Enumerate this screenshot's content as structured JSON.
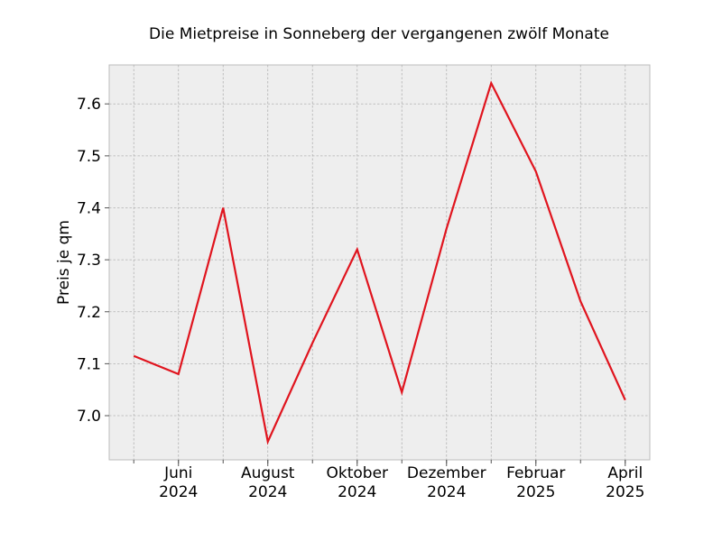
{
  "chart_data": {
    "type": "line",
    "title": "Die Mietpreise in Sonneberg der vergangenen zwölf Monate",
    "xlabel": "",
    "ylabel": "Preis je qm",
    "x": [
      "2024-05",
      "2024-06",
      "2024-07",
      "2024-08",
      "2024-09",
      "2024-10",
      "2024-11",
      "2024-12",
      "2025-01",
      "2025-02",
      "2025-03",
      "2025-04"
    ],
    "series": [
      {
        "values": [
          7.115,
          7.08,
          7.4,
          6.95,
          7.14,
          7.32,
          7.045,
          7.36,
          7.64,
          7.47,
          7.22,
          7.03
        ]
      }
    ],
    "ylim": [
      6.915,
      7.675
    ],
    "yticks": [
      7.0,
      7.1,
      7.2,
      7.3,
      7.4,
      7.5,
      7.6
    ],
    "xticks": [
      {
        "month": "Juni",
        "year": "2024",
        "index": 1
      },
      {
        "month": "August",
        "year": "2024",
        "index": 3
      },
      {
        "month": "Oktober",
        "year": "2024",
        "index": 5
      },
      {
        "month": "Dezember",
        "year": "2024",
        "index": 7
      },
      {
        "month": "Februar",
        "year": "2025",
        "index": 9
      },
      {
        "month": "April",
        "year": "2025",
        "index": 11
      }
    ],
    "xlim_index": [
      -0.55,
      11.55
    ],
    "grid": true,
    "colors": {
      "line": "#e0141e",
      "plot_bg": "#eeeeee",
      "grid": "#b2b2b2",
      "frame": "#bcbcbc"
    }
  }
}
